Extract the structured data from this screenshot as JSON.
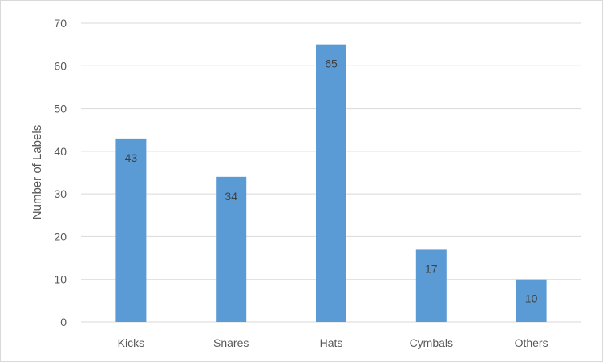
{
  "chart_data": {
    "type": "bar",
    "categories": [
      "Kicks",
      "Snares",
      "Hats",
      "Cymbals",
      "Others"
    ],
    "values": [
      43,
      34,
      65,
      17,
      10
    ],
    "data_labels": [
      "43",
      "34",
      "65",
      "17",
      "10"
    ],
    "title": "",
    "xlabel": "",
    "ylabel": "Number of Labels",
    "ylim": [
      0,
      70
    ],
    "yticks": [
      "0",
      "10",
      "20",
      "30",
      "40",
      "50",
      "60",
      "70"
    ],
    "grid": "horizontal",
    "legend": "none",
    "bar_color": "#5b9bd5",
    "grid_color": "#d9d9d9"
  }
}
